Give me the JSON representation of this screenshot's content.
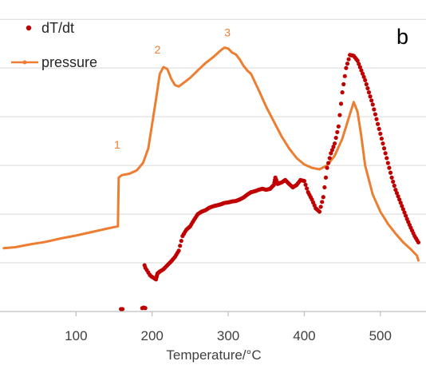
{
  "chart_data": {
    "type": "scatter",
    "panel_label": "b",
    "xlabel": "Temperature/°C",
    "ylabel": "",
    "xlim": [
      0,
      560
    ],
    "ylim": [
      0,
      6.2
    ],
    "x_ticks": [
      100,
      200,
      300,
      400,
      500
    ],
    "x_tick_labels": [
      "100",
      "200",
      "300",
      "400",
      "500"
    ],
    "grid": "horizontal",
    "legend_position": "top-left",
    "colors": {
      "dtdt": "#c00000",
      "pressure": "#ed7d31",
      "grid": "#d9d9d9",
      "axis": "#bfbfbf",
      "text": "#404040"
    },
    "series": [
      {
        "name": "dT/dt",
        "style": "markers",
        "points": [
          [
            159,
            0.05
          ],
          [
            161,
            0.05
          ],
          [
            187,
            0.07
          ],
          [
            189,
            0.08
          ],
          [
            191,
            0.07
          ],
          [
            190,
            0.95
          ],
          [
            191,
            0.9
          ],
          [
            193,
            0.85
          ],
          [
            195,
            0.8
          ],
          [
            197,
            0.75
          ],
          [
            199,
            0.72
          ],
          [
            201,
            0.7
          ],
          [
            203,
            0.68
          ],
          [
            205,
            0.66
          ],
          [
            207,
            0.78
          ],
          [
            210,
            0.82
          ],
          [
            215,
            0.87
          ],
          [
            220,
            0.95
          ],
          [
            225,
            1.03
          ],
          [
            230,
            1.12
          ],
          [
            235,
            1.25
          ],
          [
            240,
            1.55
          ],
          [
            245,
            1.68
          ],
          [
            250,
            1.75
          ],
          [
            255,
            1.88
          ],
          [
            260,
            2.0
          ],
          [
            265,
            2.05
          ],
          [
            270,
            2.08
          ],
          [
            275,
            2.13
          ],
          [
            280,
            2.16
          ],
          [
            285,
            2.18
          ],
          [
            290,
            2.2
          ],
          [
            295,
            2.23
          ],
          [
            300,
            2.24
          ],
          [
            305,
            2.26
          ],
          [
            310,
            2.27
          ],
          [
            315,
            2.3
          ],
          [
            320,
            2.34
          ],
          [
            325,
            2.4
          ],
          [
            330,
            2.45
          ],
          [
            335,
            2.47
          ],
          [
            340,
            2.5
          ],
          [
            345,
            2.52
          ],
          [
            350,
            2.5
          ],
          [
            355,
            2.52
          ],
          [
            360,
            2.6
          ],
          [
            362,
            2.75
          ],
          [
            365,
            2.62
          ],
          [
            370,
            2.65
          ],
          [
            375,
            2.7
          ],
          [
            380,
            2.62
          ],
          [
            385,
            2.55
          ],
          [
            390,
            2.6
          ],
          [
            395,
            2.7
          ],
          [
            400,
            2.68
          ],
          [
            405,
            2.45
          ],
          [
            410,
            2.3
          ],
          [
            415,
            2.12
          ],
          [
            420,
            2.05
          ],
          [
            425,
            2.35
          ],
          [
            430,
            2.95
          ],
          [
            435,
            3.25
          ],
          [
            440,
            3.45
          ],
          [
            445,
            3.8
          ],
          [
            450,
            4.5
          ],
          [
            455,
            5.0
          ],
          [
            460,
            5.27
          ],
          [
            465,
            5.25
          ],
          [
            470,
            5.15
          ],
          [
            475,
            4.95
          ],
          [
            480,
            4.75
          ],
          [
            485,
            4.5
          ],
          [
            490,
            4.25
          ],
          [
            495,
            3.95
          ],
          [
            500,
            3.65
          ],
          [
            505,
            3.35
          ],
          [
            510,
            3.05
          ],
          [
            515,
            2.75
          ],
          [
            520,
            2.5
          ],
          [
            525,
            2.3
          ],
          [
            530,
            2.1
          ],
          [
            535,
            1.9
          ],
          [
            540,
            1.72
          ],
          [
            545,
            1.55
          ],
          [
            550,
            1.42
          ]
        ]
      },
      {
        "name": "pressure",
        "style": "line",
        "points": [
          [
            5,
            1.3
          ],
          [
            20,
            1.32
          ],
          [
            40,
            1.38
          ],
          [
            60,
            1.43
          ],
          [
            80,
            1.5
          ],
          [
            100,
            1.56
          ],
          [
            120,
            1.63
          ],
          [
            140,
            1.7
          ],
          [
            155,
            1.75
          ],
          [
            156,
            2.75
          ],
          [
            160,
            2.8
          ],
          [
            170,
            2.83
          ],
          [
            180,
            2.9
          ],
          [
            188,
            3.05
          ],
          [
            195,
            3.35
          ],
          [
            200,
            3.85
          ],
          [
            205,
            4.35
          ],
          [
            210,
            4.88
          ],
          [
            215,
            5.02
          ],
          [
            220,
            4.98
          ],
          [
            225,
            4.78
          ],
          [
            230,
            4.65
          ],
          [
            235,
            4.62
          ],
          [
            240,
            4.68
          ],
          [
            250,
            4.8
          ],
          [
            260,
            4.95
          ],
          [
            270,
            5.1
          ],
          [
            280,
            5.22
          ],
          [
            290,
            5.36
          ],
          [
            295,
            5.42
          ],
          [
            300,
            5.4
          ],
          [
            305,
            5.32
          ],
          [
            310,
            5.28
          ],
          [
            315,
            5.18
          ],
          [
            320,
            5.05
          ],
          [
            325,
            4.95
          ],
          [
            330,
            4.88
          ],
          [
            340,
            4.55
          ],
          [
            350,
            4.2
          ],
          [
            360,
            3.9
          ],
          [
            370,
            3.6
          ],
          [
            380,
            3.35
          ],
          [
            390,
            3.15
          ],
          [
            400,
            3.02
          ],
          [
            410,
            2.95
          ],
          [
            420,
            2.92
          ],
          [
            430,
            3.0
          ],
          [
            440,
            3.2
          ],
          [
            450,
            3.55
          ],
          [
            460,
            4.05
          ],
          [
            465,
            4.3
          ],
          [
            470,
            4.1
          ],
          [
            475,
            3.6
          ],
          [
            480,
            3.0
          ],
          [
            490,
            2.4
          ],
          [
            500,
            2.05
          ],
          [
            510,
            1.8
          ],
          [
            520,
            1.6
          ],
          [
            530,
            1.42
          ],
          [
            540,
            1.28
          ],
          [
            548,
            1.15
          ],
          [
            550,
            1.05
          ]
        ]
      }
    ],
    "annotations": [
      {
        "text": "1",
        "x": 150,
        "y": 3.35
      },
      {
        "text": "2",
        "x": 203,
        "y": 5.3
      },
      {
        "text": "3",
        "x": 295,
        "y": 5.65
      }
    ]
  }
}
